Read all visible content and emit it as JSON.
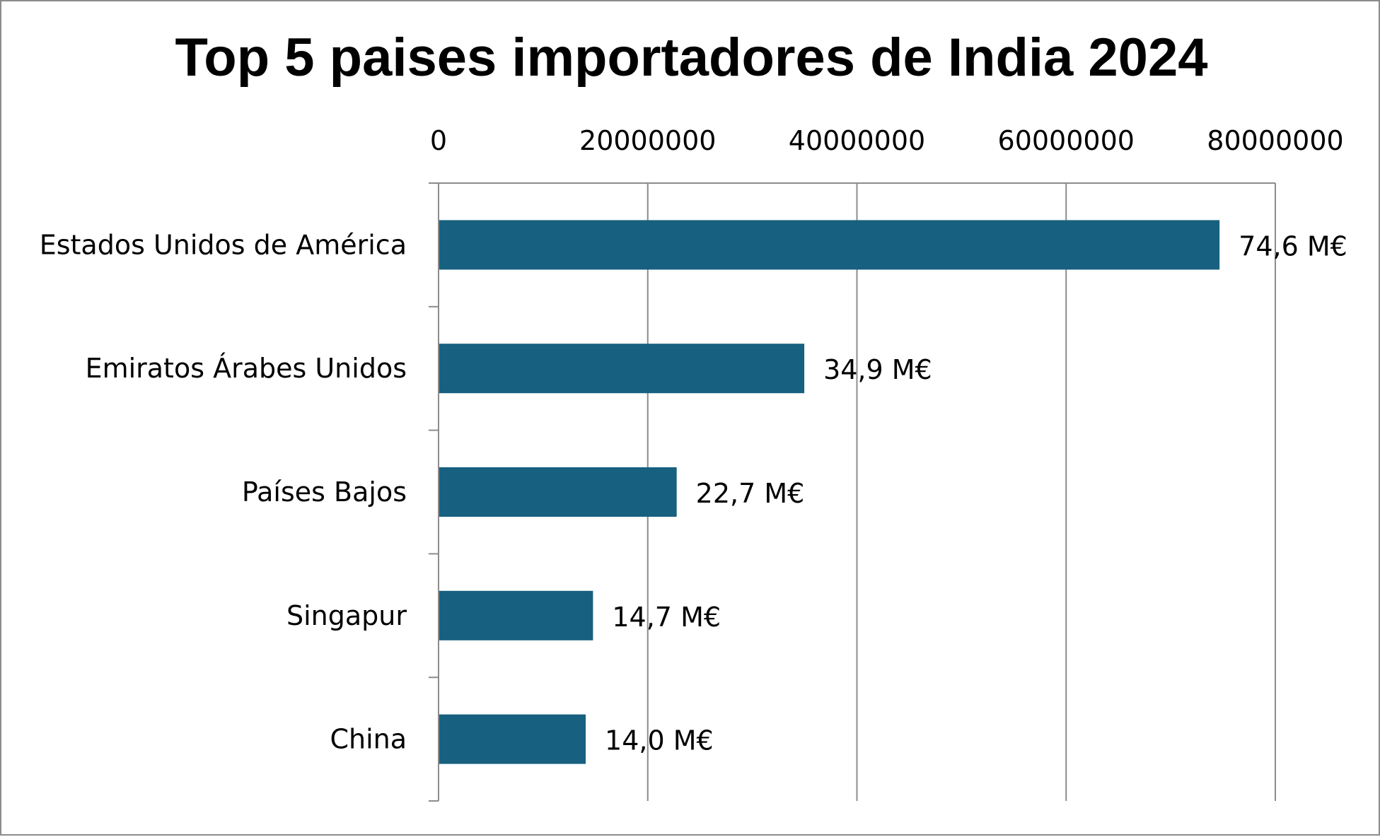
{
  "chart_data": {
    "type": "bar",
    "orientation": "horizontal",
    "title": "Top 5 paises importadores de India 2024",
    "categories": [
      "Estados Unidos de América",
      "Emiratos Árabes Unidos",
      "Países Bajos",
      "Singapur",
      "China"
    ],
    "values": [
      74600000,
      34900000,
      22700000,
      14700000,
      14000000
    ],
    "data_labels": [
      "74,6 M€",
      "34,9 M€",
      "22,7 M€",
      "14,7 M€",
      "14,0 M€"
    ],
    "xaxis": {
      "position": "top",
      "min": 0,
      "max": 80000000,
      "ticks": [
        0,
        20000000,
        40000000,
        60000000,
        80000000
      ],
      "tick_labels": [
        "0",
        "20000000",
        "40000000",
        "60000000",
        "80000000"
      ]
    },
    "grid": true,
    "legend": "none",
    "colors": {
      "bar": "#17607f",
      "grid": "#8c8c8c",
      "axis": "#8c8c8c",
      "border": "#8c8c8c"
    }
  }
}
